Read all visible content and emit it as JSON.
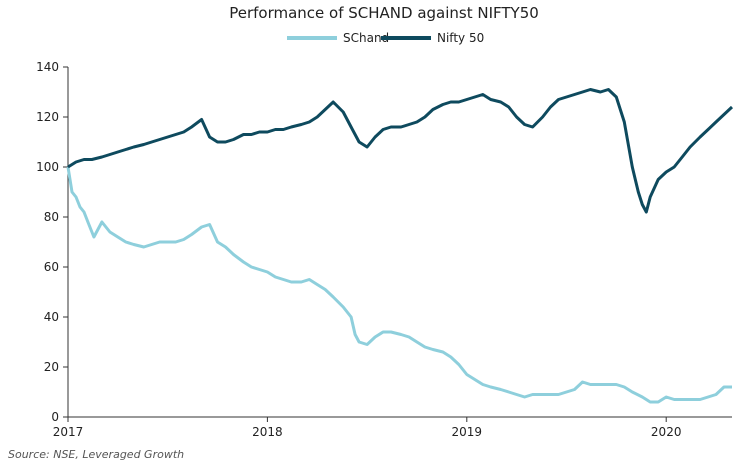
{
  "chart_data": {
    "type": "line",
    "title": "Performance of SCHAND against NIFTY50",
    "source": "Source: NSE, Leveraged Growth",
    "xlabel": "",
    "ylabel": "",
    "x_ticks": [
      "2017",
      "2018",
      "2019",
      "2020"
    ],
    "y_ticks": [
      0,
      20,
      40,
      60,
      80,
      100,
      120,
      140
    ],
    "ylim": [
      0,
      140
    ],
    "xlim": [
      2017.0,
      2020.33
    ],
    "grid": false,
    "legend": "top-center",
    "series": [
      {
        "name": "SChand",
        "color": "#8ecfdc",
        "points": [
          [
            2017.0,
            100
          ],
          [
            2017.02,
            90
          ],
          [
            2017.04,
            88
          ],
          [
            2017.06,
            84
          ],
          [
            2017.08,
            82
          ],
          [
            2017.1,
            78
          ],
          [
            2017.13,
            72
          ],
          [
            2017.17,
            78
          ],
          [
            2017.21,
            74
          ],
          [
            2017.25,
            72
          ],
          [
            2017.29,
            70
          ],
          [
            2017.33,
            69
          ],
          [
            2017.38,
            68
          ],
          [
            2017.42,
            69
          ],
          [
            2017.46,
            70
          ],
          [
            2017.5,
            70
          ],
          [
            2017.54,
            70
          ],
          [
            2017.58,
            71
          ],
          [
            2017.62,
            73
          ],
          [
            2017.67,
            76
          ],
          [
            2017.71,
            77
          ],
          [
            2017.75,
            70
          ],
          [
            2017.79,
            68
          ],
          [
            2017.83,
            65
          ],
          [
            2017.88,
            62
          ],
          [
            2017.92,
            60
          ],
          [
            2017.96,
            59
          ],
          [
            2018.0,
            58
          ],
          [
            2018.04,
            56
          ],
          [
            2018.08,
            55
          ],
          [
            2018.12,
            54
          ],
          [
            2018.17,
            54
          ],
          [
            2018.21,
            55
          ],
          [
            2018.25,
            53
          ],
          [
            2018.29,
            51
          ],
          [
            2018.33,
            48
          ],
          [
            2018.38,
            44
          ],
          [
            2018.42,
            40
          ],
          [
            2018.44,
            33
          ],
          [
            2018.46,
            30
          ],
          [
            2018.5,
            29
          ],
          [
            2018.54,
            32
          ],
          [
            2018.58,
            34
          ],
          [
            2018.62,
            34
          ],
          [
            2018.67,
            33
          ],
          [
            2018.71,
            32
          ],
          [
            2018.75,
            30
          ],
          [
            2018.79,
            28
          ],
          [
            2018.83,
            27
          ],
          [
            2018.88,
            26
          ],
          [
            2018.92,
            24
          ],
          [
            2018.96,
            21
          ],
          [
            2019.0,
            17
          ],
          [
            2019.04,
            15
          ],
          [
            2019.08,
            13
          ],
          [
            2019.12,
            12
          ],
          [
            2019.17,
            11
          ],
          [
            2019.21,
            10
          ],
          [
            2019.25,
            9
          ],
          [
            2019.29,
            8
          ],
          [
            2019.33,
            9
          ],
          [
            2019.38,
            9
          ],
          [
            2019.42,
            9
          ],
          [
            2019.46,
            9
          ],
          [
            2019.5,
            10
          ],
          [
            2019.54,
            11
          ],
          [
            2019.58,
            14
          ],
          [
            2019.62,
            13
          ],
          [
            2019.67,
            13
          ],
          [
            2019.71,
            13
          ],
          [
            2019.75,
            13
          ],
          [
            2019.79,
            12
          ],
          [
            2019.83,
            10
          ],
          [
            2019.88,
            8
          ],
          [
            2019.92,
            6
          ],
          [
            2019.96,
            6
          ],
          [
            2020.0,
            8
          ],
          [
            2020.04,
            7
          ],
          [
            2020.08,
            7
          ],
          [
            2020.12,
            7
          ],
          [
            2020.17,
            7
          ],
          [
            2020.21,
            8
          ],
          [
            2020.25,
            9
          ],
          [
            2020.29,
            12
          ],
          [
            2020.33,
            12
          ]
        ]
      },
      {
        "name": "Nifty 50",
        "color": "#0e4a5e",
        "points": [
          [
            2017.0,
            100
          ],
          [
            2017.04,
            102
          ],
          [
            2017.08,
            103
          ],
          [
            2017.12,
            103
          ],
          [
            2017.17,
            104
          ],
          [
            2017.21,
            105
          ],
          [
            2017.25,
            106
          ],
          [
            2017.29,
            107
          ],
          [
            2017.33,
            108
          ],
          [
            2017.38,
            109
          ],
          [
            2017.42,
            110
          ],
          [
            2017.46,
            111
          ],
          [
            2017.5,
            112
          ],
          [
            2017.54,
            113
          ],
          [
            2017.58,
            114
          ],
          [
            2017.62,
            116
          ],
          [
            2017.67,
            119
          ],
          [
            2017.71,
            112
          ],
          [
            2017.75,
            110
          ],
          [
            2017.79,
            110
          ],
          [
            2017.83,
            111
          ],
          [
            2017.88,
            113
          ],
          [
            2017.92,
            113
          ],
          [
            2017.96,
            114
          ],
          [
            2018.0,
            114
          ],
          [
            2018.04,
            115
          ],
          [
            2018.08,
            115
          ],
          [
            2018.12,
            116
          ],
          [
            2018.17,
            117
          ],
          [
            2018.21,
            118
          ],
          [
            2018.25,
            120
          ],
          [
            2018.29,
            123
          ],
          [
            2018.33,
            126
          ],
          [
            2018.38,
            122
          ],
          [
            2018.42,
            116
          ],
          [
            2018.46,
            110
          ],
          [
            2018.5,
            108
          ],
          [
            2018.54,
            112
          ],
          [
            2018.58,
            115
          ],
          [
            2018.62,
            116
          ],
          [
            2018.67,
            116
          ],
          [
            2018.71,
            117
          ],
          [
            2018.75,
            118
          ],
          [
            2018.79,
            120
          ],
          [
            2018.83,
            123
          ],
          [
            2018.88,
            125
          ],
          [
            2018.92,
            126
          ],
          [
            2018.96,
            126
          ],
          [
            2019.0,
            127
          ],
          [
            2019.04,
            128
          ],
          [
            2019.08,
            129
          ],
          [
            2019.12,
            127
          ],
          [
            2019.17,
            126
          ],
          [
            2019.21,
            124
          ],
          [
            2019.25,
            120
          ],
          [
            2019.29,
            117
          ],
          [
            2019.33,
            116
          ],
          [
            2019.38,
            120
          ],
          [
            2019.42,
            124
          ],
          [
            2019.46,
            127
          ],
          [
            2019.5,
            128
          ],
          [
            2019.54,
            129
          ],
          [
            2019.58,
            130
          ],
          [
            2019.62,
            131
          ],
          [
            2019.67,
            130
          ],
          [
            2019.71,
            131
          ],
          [
            2019.75,
            128
          ],
          [
            2019.79,
            118
          ],
          [
            2019.83,
            100
          ],
          [
            2019.86,
            90
          ],
          [
            2019.88,
            85
          ],
          [
            2019.9,
            82
          ],
          [
            2019.92,
            88
          ],
          [
            2019.96,
            95
          ],
          [
            2020.0,
            98
          ],
          [
            2020.04,
            100
          ],
          [
            2020.08,
            104
          ],
          [
            2020.12,
            108
          ],
          [
            2020.17,
            112
          ],
          [
            2020.21,
            115
          ],
          [
            2020.25,
            118
          ],
          [
            2020.29,
            121
          ],
          [
            2020.33,
            124
          ]
        ]
      }
    ]
  }
}
